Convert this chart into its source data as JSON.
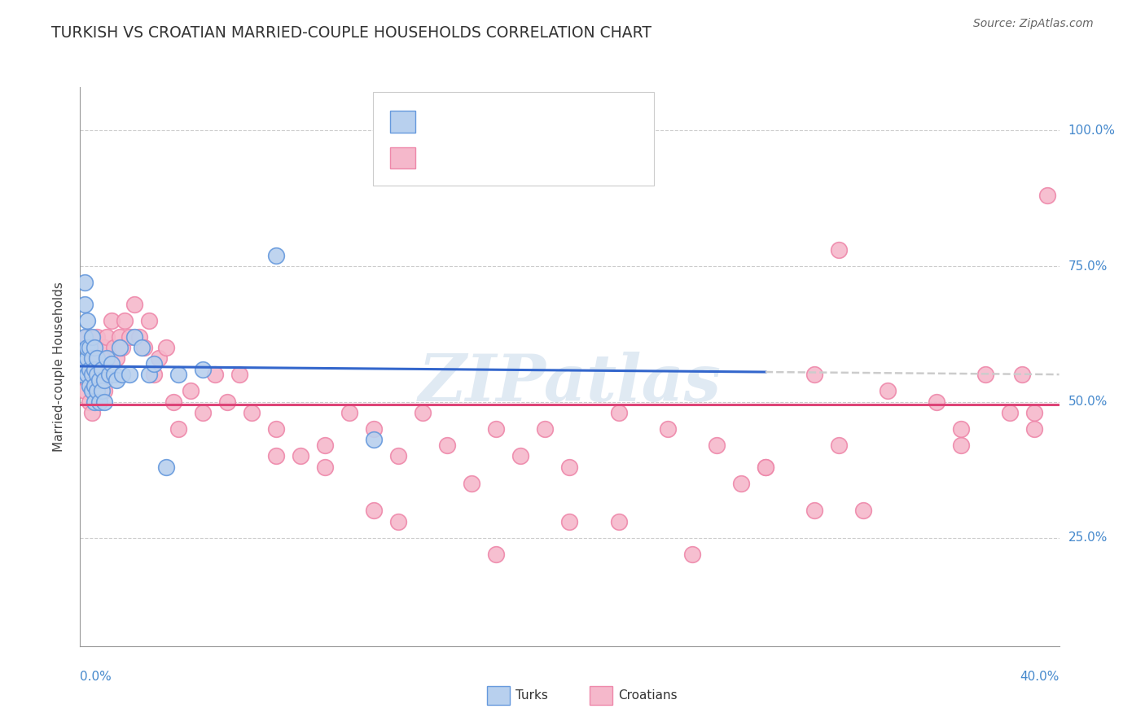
{
  "title": "TURKISH VS CROATIAN MARRIED-COUPLE HOUSEHOLDS CORRELATION CHART",
  "source": "Source: ZipAtlas.com",
  "ylabel": "Married-couple Households",
  "ytick_values": [
    1.0,
    0.75,
    0.5,
    0.25
  ],
  "ytick_labels": [
    "100.0%",
    "75.0%",
    "50.0%",
    "25.0%"
  ],
  "xmin": 0.0,
  "xmax": 0.4,
  "ymin": 0.05,
  "ymax": 1.08,
  "turk_color": "#b8d0ee",
  "croatian_color": "#f5b8cb",
  "turk_edge_color": "#6699dd",
  "croatian_edge_color": "#ee88aa",
  "turk_line_color": "#3366cc",
  "croatian_line_color": "#dd4477",
  "background_color": "#ffffff",
  "grid_color": "#cccccc",
  "watermark_text": "ZIPatlas",
  "watermark_color": "#ccdcec",
  "turks_x": [
    0.001,
    0.001,
    0.002,
    0.002,
    0.002,
    0.003,
    0.003,
    0.003,
    0.003,
    0.004,
    0.004,
    0.004,
    0.005,
    0.005,
    0.005,
    0.005,
    0.006,
    0.006,
    0.006,
    0.006,
    0.007,
    0.007,
    0.007,
    0.008,
    0.008,
    0.009,
    0.009,
    0.01,
    0.01,
    0.011,
    0.012,
    0.013,
    0.014,
    0.015,
    0.016,
    0.017,
    0.02,
    0.022,
    0.025,
    0.028,
    0.03,
    0.035,
    0.04,
    0.05,
    0.08,
    0.12
  ],
  "turks_y": [
    0.55,
    0.57,
    0.62,
    0.68,
    0.72,
    0.55,
    0.58,
    0.6,
    0.65,
    0.53,
    0.56,
    0.6,
    0.52,
    0.55,
    0.58,
    0.62,
    0.5,
    0.53,
    0.56,
    0.6,
    0.52,
    0.55,
    0.58,
    0.5,
    0.54,
    0.52,
    0.56,
    0.5,
    0.54,
    0.58,
    0.55,
    0.57,
    0.55,
    0.54,
    0.6,
    0.55,
    0.55,
    0.62,
    0.6,
    0.55,
    0.57,
    0.38,
    0.55,
    0.56,
    0.77,
    0.43
  ],
  "croatians_x": [
    0.001,
    0.002,
    0.003,
    0.003,
    0.004,
    0.004,
    0.005,
    0.005,
    0.006,
    0.006,
    0.007,
    0.007,
    0.008,
    0.009,
    0.01,
    0.01,
    0.011,
    0.012,
    0.013,
    0.014,
    0.015,
    0.016,
    0.017,
    0.018,
    0.02,
    0.022,
    0.024,
    0.026,
    0.028,
    0.03,
    0.032,
    0.035,
    0.038,
    0.04,
    0.045,
    0.05,
    0.055,
    0.06,
    0.065,
    0.07,
    0.08,
    0.09,
    0.1,
    0.11,
    0.12,
    0.13,
    0.14,
    0.15,
    0.17,
    0.18,
    0.19,
    0.2,
    0.22,
    0.24,
    0.26,
    0.28,
    0.3,
    0.31,
    0.33,
    0.35,
    0.36,
    0.37,
    0.38,
    0.385,
    0.39,
    0.395,
    0.3,
    0.2,
    0.25,
    0.28,
    0.31,
    0.1,
    0.13,
    0.16,
    0.08,
    0.12,
    0.17,
    0.22,
    0.27,
    0.32,
    0.36,
    0.39
  ],
  "croatians_y": [
    0.55,
    0.52,
    0.57,
    0.62,
    0.55,
    0.5,
    0.55,
    0.48,
    0.52,
    0.58,
    0.55,
    0.62,
    0.52,
    0.55,
    0.52,
    0.6,
    0.62,
    0.58,
    0.65,
    0.6,
    0.58,
    0.62,
    0.6,
    0.65,
    0.62,
    0.68,
    0.62,
    0.6,
    0.65,
    0.55,
    0.58,
    0.6,
    0.5,
    0.45,
    0.52,
    0.48,
    0.55,
    0.5,
    0.55,
    0.48,
    0.45,
    0.4,
    0.42,
    0.48,
    0.45,
    0.4,
    0.48,
    0.42,
    0.45,
    0.4,
    0.45,
    0.38,
    0.48,
    0.45,
    0.42,
    0.38,
    0.55,
    0.78,
    0.52,
    0.5,
    0.42,
    0.55,
    0.48,
    0.55,
    0.45,
    0.88,
    0.3,
    0.28,
    0.22,
    0.38,
    0.42,
    0.38,
    0.28,
    0.35,
    0.4,
    0.3,
    0.22,
    0.28,
    0.35,
    0.3,
    0.45,
    0.48
  ]
}
